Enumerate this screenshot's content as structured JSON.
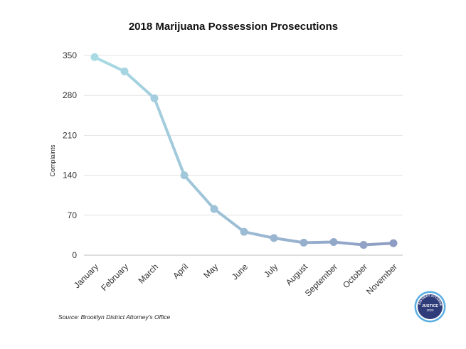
{
  "chart_data": {
    "type": "line",
    "title": "2018 Marijuana Possession Prosecutions",
    "xlabel": "",
    "ylabel": "Complaints",
    "categories": [
      "January",
      "February",
      "March",
      "April",
      "May",
      "June",
      "July",
      "August",
      "September",
      "October",
      "November"
    ],
    "series": [
      {
        "values": [
          347,
          322,
          275,
          140,
          81,
          41,
          30,
          22,
          23,
          18,
          21
        ]
      }
    ],
    "ylim": [
      0,
      350
    ],
    "yticks": [
      "0",
      "70",
      "140",
      "210",
      "280",
      "350"
    ],
    "grid": true,
    "legend": "none",
    "line_color_start": "#a9dbe4",
    "line_color_end": "#8e9cc3"
  },
  "source_note": "Source: Brooklyn District Attorney's Office",
  "logo": {
    "ring_text": "BROOKLYN DISTRICT ATTORNEY'S OFFICE",
    "center_text_1": "JUSTICE",
    "center_text_2": "2020",
    "colors": {
      "outer": "#5aaee3",
      "inner": "#2e3c7a"
    }
  }
}
